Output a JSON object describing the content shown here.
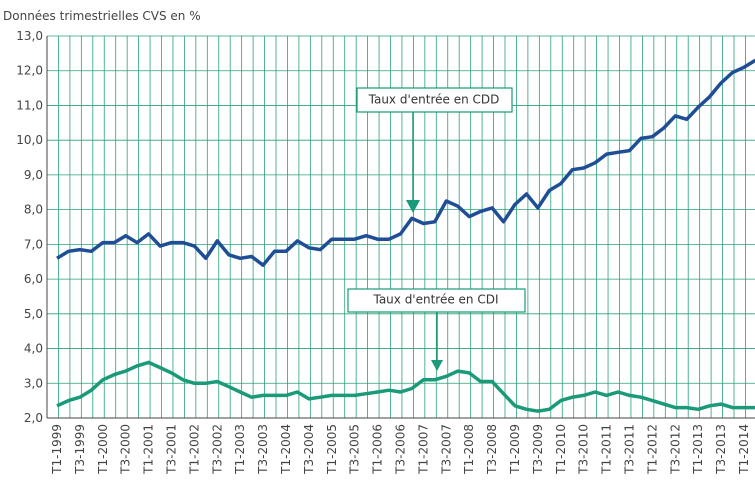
{
  "chart_data": {
    "type": "line",
    "y_axis_label": "Données trimestrielles CVS en %",
    "categories": [
      "T1-1999",
      null,
      "T3-1999",
      null,
      "T1-2000",
      null,
      "T3-2000",
      null,
      "T1-2001",
      null,
      "T3-2001",
      null,
      "T1-2002",
      null,
      "T3-2002",
      null,
      "T1-2003",
      null,
      "T3-2003",
      null,
      "T1-2004",
      null,
      "T3-2004",
      null,
      "T1-2005",
      null,
      "T3-2005",
      null,
      "T1-2006",
      null,
      "T3-2006",
      null,
      "T1-2007",
      null,
      "T3-2007",
      null,
      "T1-2008",
      null,
      "T3-2008",
      null,
      "T1-2009",
      null,
      "T3-2009",
      null,
      "T1-2010",
      null,
      "T3-2010",
      null,
      "T1-2011",
      null,
      "T3-2011",
      null,
      "T1-2012",
      null,
      "T3-2012",
      null,
      "T1-2013",
      null,
      "T3-2013",
      null,
      "T1-2014",
      null
    ],
    "series": [
      {
        "name": "Taux d'entrée en CDD",
        "color": "#1f4e96",
        "values": [
          6.6,
          6.8,
          6.85,
          6.8,
          7.05,
          7.05,
          7.25,
          7.05,
          7.3,
          6.95,
          7.05,
          7.05,
          6.95,
          6.6,
          7.1,
          6.7,
          6.6,
          6.65,
          6.4,
          6.8,
          6.8,
          7.1,
          6.9,
          6.85,
          7.15,
          7.15,
          7.15,
          7.25,
          7.15,
          7.15,
          7.3,
          7.75,
          7.6,
          7.65,
          8.25,
          8.1,
          7.8,
          7.95,
          8.05,
          7.65,
          8.15,
          8.45,
          8.05,
          8.55,
          8.75,
          9.15,
          9.2,
          9.35,
          9.6,
          9.65,
          9.7,
          10.05,
          10.1,
          10.35,
          10.7,
          10.6,
          10.95,
          11.25,
          11.65,
          11.95,
          12.1,
          12.3
        ]
      },
      {
        "name": "Taux d'entrée en CDI",
        "color": "#1a9a78",
        "values": [
          2.35,
          2.5,
          2.6,
          2.8,
          3.1,
          3.25,
          3.35,
          3.5,
          3.6,
          3.45,
          3.3,
          3.1,
          3.0,
          3.0,
          3.05,
          2.9,
          2.75,
          2.6,
          2.65,
          2.65,
          2.65,
          2.75,
          2.55,
          2.6,
          2.65,
          2.65,
          2.65,
          2.7,
          2.75,
          2.8,
          2.75,
          2.85,
          3.1,
          3.1,
          3.2,
          3.35,
          3.3,
          3.05,
          3.05,
          2.7,
          2.35,
          2.25,
          2.2,
          2.25,
          2.5,
          2.6,
          2.65,
          2.75,
          2.65,
          2.75,
          2.65,
          2.6,
          2.5,
          2.4,
          2.3,
          2.3,
          2.25,
          2.35,
          2.4,
          2.3,
          2.3,
          2.3
        ]
      }
    ],
    "ylim": [
      2,
      13
    ],
    "yticks": [
      {
        "value": 2,
        "label": "2,0"
      },
      {
        "value": 3,
        "label": "3,0"
      },
      {
        "value": 4,
        "label": "4,0"
      },
      {
        "value": 5,
        "label": "5,0"
      },
      {
        "value": 6,
        "label": "6,0"
      },
      {
        "value": 7,
        "label": "7,0"
      },
      {
        "value": 8,
        "label": "8,0"
      },
      {
        "value": 9,
        "label": "9,0"
      },
      {
        "value": 10,
        "label": "10,0"
      },
      {
        "value": 11,
        "label": "11,0"
      },
      {
        "value": 12,
        "label": "12,0"
      },
      {
        "value": 13,
        "label": "13,0"
      }
    ],
    "grid": true
  }
}
